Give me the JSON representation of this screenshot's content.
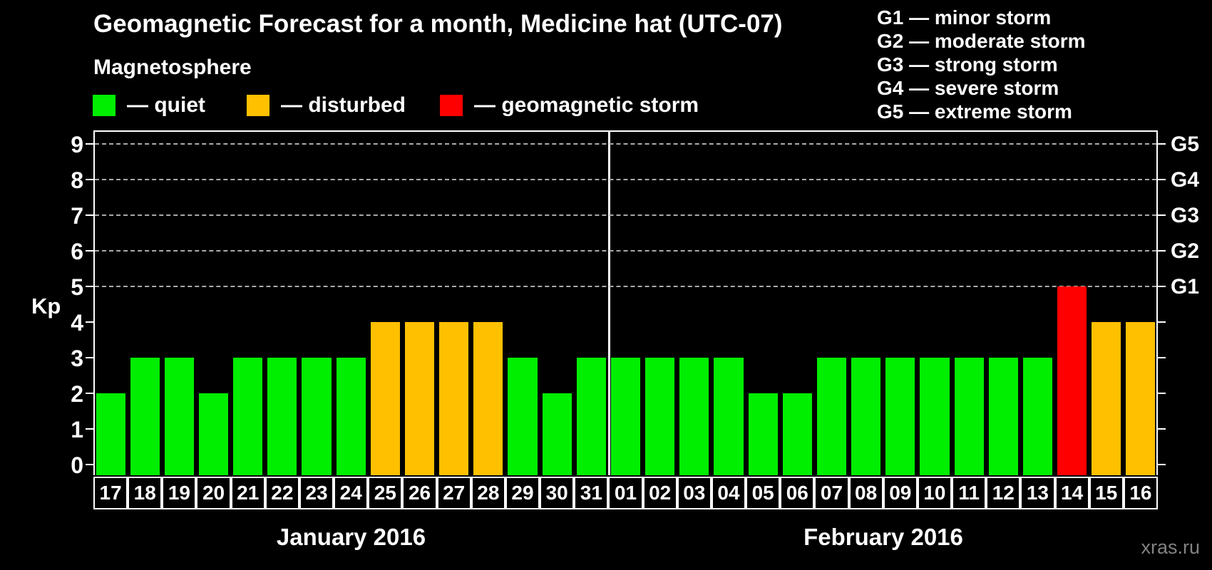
{
  "title": "Geomagnetic Forecast for a month, Medicine hat (UTC-07)",
  "subtitle": "Magnetosphere",
  "legend": {
    "items": [
      {
        "label": "— quiet",
        "status": "quiet"
      },
      {
        "label": "— disturbed",
        "status": "disturbed"
      },
      {
        "label": "— geomagnetic storm",
        "status": "storm"
      }
    ]
  },
  "storm_scale": {
    "items": [
      "G1 — minor storm",
      "G2 — moderate storm",
      "G3 — strong storm",
      "G4 — severe storm",
      "G5 — extreme storm"
    ]
  },
  "watermark": "xras.ru",
  "chart_data": {
    "type": "bar",
    "ylabel": "Kp",
    "ylim": [
      0,
      9
    ],
    "yticks": [
      0,
      1,
      2,
      3,
      4,
      5,
      6,
      7,
      8,
      9
    ],
    "grid_kp": [
      5,
      6,
      7,
      8,
      9
    ],
    "right_axis": [
      {
        "label": "G1",
        "kp": 5
      },
      {
        "label": "G2",
        "kp": 6
      },
      {
        "label": "G3",
        "kp": 7
      },
      {
        "label": "G4",
        "kp": 8
      },
      {
        "label": "G5",
        "kp": 9
      }
    ],
    "colors": {
      "quiet": "#00ee00",
      "disturbed": "#ffc000",
      "storm": "#ff0000"
    },
    "months": [
      {
        "label": "January 2016",
        "days": [
          {
            "day": "17",
            "kp": 2,
            "status": "quiet"
          },
          {
            "day": "18",
            "kp": 3,
            "status": "quiet"
          },
          {
            "day": "19",
            "kp": 3,
            "status": "quiet"
          },
          {
            "day": "20",
            "kp": 2,
            "status": "quiet"
          },
          {
            "day": "21",
            "kp": 3,
            "status": "quiet"
          },
          {
            "day": "22",
            "kp": 3,
            "status": "quiet"
          },
          {
            "day": "23",
            "kp": 3,
            "status": "quiet"
          },
          {
            "day": "24",
            "kp": 3,
            "status": "quiet"
          },
          {
            "day": "25",
            "kp": 4,
            "status": "disturbed"
          },
          {
            "day": "26",
            "kp": 4,
            "status": "disturbed"
          },
          {
            "day": "27",
            "kp": 4,
            "status": "disturbed"
          },
          {
            "day": "28",
            "kp": 4,
            "status": "disturbed"
          },
          {
            "day": "29",
            "kp": 3,
            "status": "quiet"
          },
          {
            "day": "30",
            "kp": 2,
            "status": "quiet"
          },
          {
            "day": "31",
            "kp": 3,
            "status": "quiet"
          }
        ]
      },
      {
        "label": "February 2016",
        "days": [
          {
            "day": "01",
            "kp": 3,
            "status": "quiet"
          },
          {
            "day": "02",
            "kp": 3,
            "status": "quiet"
          },
          {
            "day": "03",
            "kp": 3,
            "status": "quiet"
          },
          {
            "day": "04",
            "kp": 3,
            "status": "quiet"
          },
          {
            "day": "05",
            "kp": 2,
            "status": "quiet"
          },
          {
            "day": "06",
            "kp": 2,
            "status": "quiet"
          },
          {
            "day": "07",
            "kp": 3,
            "status": "quiet"
          },
          {
            "day": "08",
            "kp": 3,
            "status": "quiet"
          },
          {
            "day": "09",
            "kp": 3,
            "status": "quiet"
          },
          {
            "day": "10",
            "kp": 3,
            "status": "quiet"
          },
          {
            "day": "11",
            "kp": 3,
            "status": "quiet"
          },
          {
            "day": "12",
            "kp": 3,
            "status": "quiet"
          },
          {
            "day": "13",
            "kp": 3,
            "status": "quiet"
          },
          {
            "day": "14",
            "kp": 5,
            "status": "storm"
          },
          {
            "day": "15",
            "kp": 4,
            "status": "disturbed"
          },
          {
            "day": "16",
            "kp": 4,
            "status": "disturbed"
          }
        ]
      }
    ]
  }
}
